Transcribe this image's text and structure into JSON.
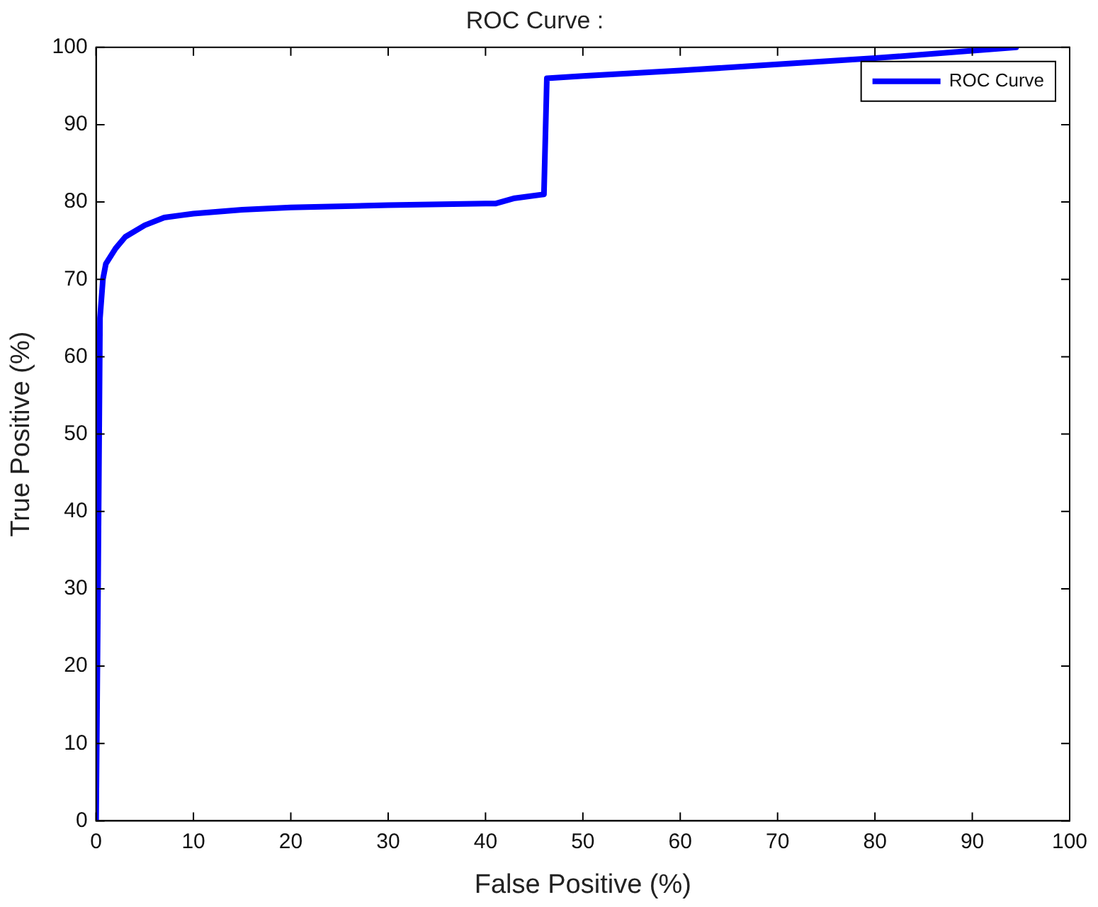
{
  "chart_data": {
    "type": "line",
    "title": "ROC Curve :",
    "xlabel": "False Positive (%)",
    "ylabel": "True Positive (%)",
    "xlim": [
      0,
      100
    ],
    "ylim": [
      0,
      100
    ],
    "xticks": [
      0,
      10,
      20,
      30,
      40,
      50,
      60,
      70,
      80,
      90,
      100
    ],
    "yticks": [
      0,
      10,
      20,
      30,
      40,
      50,
      60,
      70,
      80,
      90,
      100
    ],
    "grid": false,
    "legend": "top right",
    "marker": "none",
    "line_style": "solid",
    "series": [
      {
        "name": "ROC Curve",
        "color": "#0000ff",
        "x": [
          0,
          0.2,
          0.4,
          0.7,
          1,
          2,
          3,
          5,
          7,
          10,
          15,
          20,
          30,
          40,
          41,
          43,
          46,
          46.3,
          50,
          60,
          70,
          80,
          94.5
        ],
        "values": [
          0,
          30,
          65,
          70,
          72,
          74,
          75.5,
          77,
          78,
          78.5,
          79,
          79.3,
          79.6,
          79.8,
          79.8,
          80.5,
          81,
          96,
          96.3,
          97,
          97.8,
          98.6,
          100
        ]
      }
    ]
  }
}
